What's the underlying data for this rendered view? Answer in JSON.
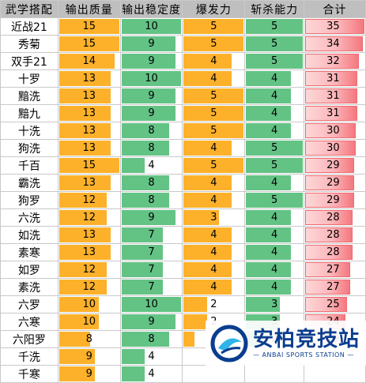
{
  "table": {
    "headers": [
      "武学搭配",
      "输出质量",
      "输出稳定度",
      "爆发力",
      "斩杀能力",
      "合计"
    ],
    "max": {
      "quality": 15,
      "stability": 10,
      "burst": 5,
      "kill": 5,
      "total": 35
    },
    "rows": [
      {
        "name": "近战21",
        "quality": 15,
        "stability": 10,
        "burst": 5,
        "kill": 5,
        "total": 35
      },
      {
        "name": "秀菊",
        "quality": 15,
        "stability": 9,
        "burst": 5,
        "kill": 5,
        "total": 34
      },
      {
        "name": "双手21",
        "quality": 14,
        "stability": 9,
        "burst": 4,
        "kill": 5,
        "total": 32
      },
      {
        "name": "十罗",
        "quality": 13,
        "stability": 10,
        "burst": 4,
        "kill": 4,
        "total": 31
      },
      {
        "name": "黯洗",
        "quality": 13,
        "stability": 9,
        "burst": 5,
        "kill": 4,
        "total": 31
      },
      {
        "name": "黯九",
        "quality": 13,
        "stability": 9,
        "burst": 5,
        "kill": 4,
        "total": 31
      },
      {
        "name": "十洗",
        "quality": 13,
        "stability": 8,
        "burst": 5,
        "kill": 4,
        "total": 30
      },
      {
        "name": "狗洗",
        "quality": 13,
        "stability": 8,
        "burst": 4,
        "kill": 5,
        "total": 30
      },
      {
        "name": "千百",
        "quality": 15,
        "stability": 4,
        "burst": 5,
        "kill": 5,
        "total": 29
      },
      {
        "name": "霸洗",
        "quality": 13,
        "stability": 8,
        "burst": 4,
        "kill": 4,
        "total": 29
      },
      {
        "name": "狗罗",
        "quality": 12,
        "stability": 8,
        "burst": 4,
        "kill": 5,
        "total": 29
      },
      {
        "name": "六洗",
        "quality": 12,
        "stability": 9,
        "burst": 3,
        "kill": 4,
        "total": 28
      },
      {
        "name": "如洗",
        "quality": 13,
        "stability": 7,
        "burst": 4,
        "kill": 4,
        "total": 28
      },
      {
        "name": "素寒",
        "quality": 13,
        "stability": 7,
        "burst": 4,
        "kill": 4,
        "total": 28
      },
      {
        "name": "如罗",
        "quality": 12,
        "stability": 7,
        "burst": 4,
        "kill": 4,
        "total": 27
      },
      {
        "name": "素洗",
        "quality": 12,
        "stability": 7,
        "burst": 4,
        "kill": 4,
        "total": 27
      },
      {
        "name": "六罗",
        "quality": 10,
        "stability": 10,
        "burst": 2,
        "kill": 3,
        "total": 25
      },
      {
        "name": "六寒",
        "quality": 10,
        "stability": 9,
        "burst": 2,
        "kill": 3,
        "total": 24
      },
      {
        "name": "六阳罗",
        "quality": 8,
        "stability": 8,
        "burst": 1,
        "kill": 2,
        "total": 19
      },
      {
        "name": "千洗",
        "quality": 9,
        "stability": 4,
        "burst": null,
        "kill": null,
        "total": null
      },
      {
        "name": "千寒",
        "quality": 9,
        "stability": 4,
        "burst": null,
        "kill": null,
        "total": null
      }
    ]
  },
  "watermark": {
    "cn": "安柏竞技站",
    "en": "— ANBAI SPORTS STATION —",
    "logo_icon": "anbai-logo-icon",
    "logo_colors": [
      "#0a3d8f",
      "#2fb4e9"
    ]
  },
  "colors": {
    "header_bg": "#bfbfbf",
    "quality": "#fdb12a",
    "stability": "#63c385",
    "burst": "#fdb12a",
    "kill": "#63c385",
    "total_border": "#f06b72"
  }
}
